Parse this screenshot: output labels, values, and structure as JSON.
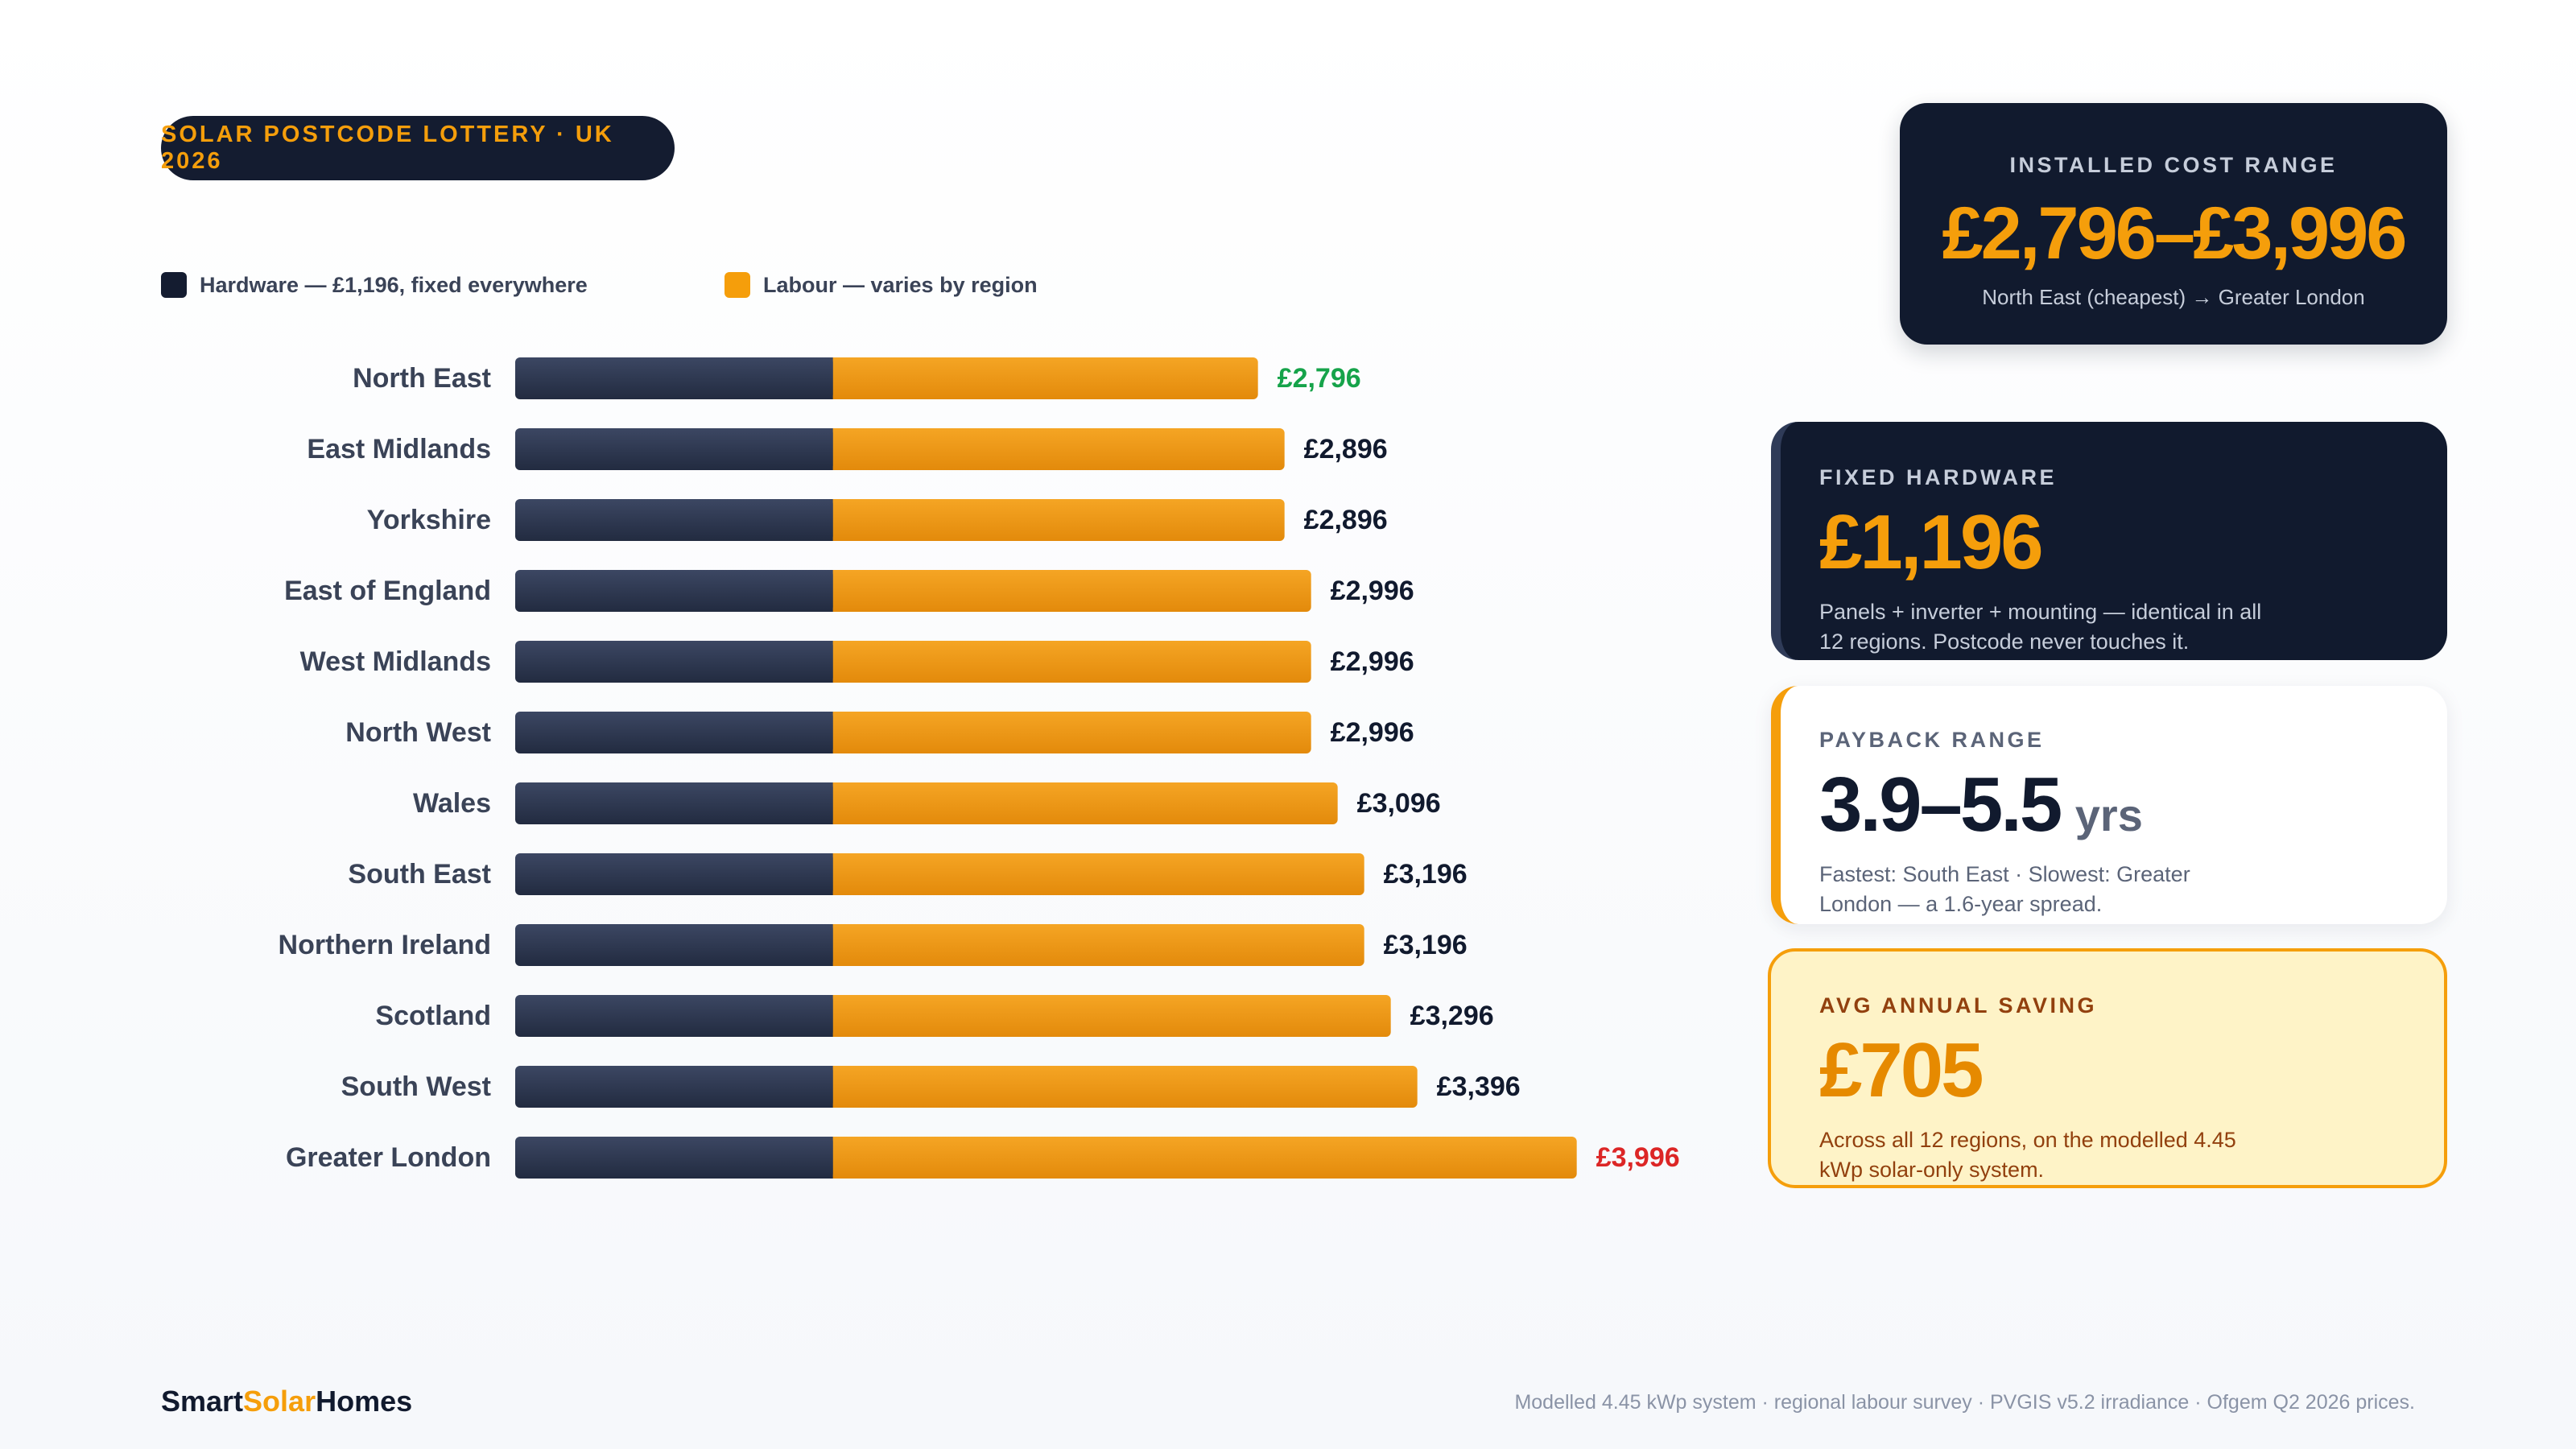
{
  "badge": "SOLAR POSTCODE LOTTERY · UK 2026",
  "legend": {
    "hardware": "Hardware — £1,196, fixed everywhere",
    "labour": "Labour — varies by region"
  },
  "colors": {
    "hardware": "#2c3650",
    "labour": "#f59e0b",
    "cheapest": "#16a34a",
    "priciest": "#dc2626",
    "dark": "#111a2e"
  },
  "chart_data": {
    "type": "bar",
    "orientation": "horizontal",
    "stacked": true,
    "categories": [
      "North East",
      "East Midlands",
      "Yorkshire",
      "East of England",
      "West Midlands",
      "North West",
      "Wales",
      "South East",
      "Northern Ireland",
      "Scotland",
      "South West",
      "Greater London"
    ],
    "series": [
      {
        "name": "Hardware — £1,196, fixed everywhere",
        "values": [
          1196,
          1196,
          1196,
          1196,
          1196,
          1196,
          1196,
          1196,
          1196,
          1196,
          1196,
          1196
        ]
      },
      {
        "name": "Labour — varies by region",
        "values": [
          1600,
          1700,
          1700,
          1800,
          1800,
          1800,
          1900,
          2000,
          2000,
          2100,
          2200,
          2800
        ]
      }
    ],
    "totals": [
      2796,
      2896,
      2896,
      2996,
      2996,
      2996,
      3096,
      3196,
      3196,
      3296,
      3396,
      3996
    ],
    "data_labels": [
      "£2,796",
      "£2,896",
      "£2,896",
      "£2,996",
      "£2,996",
      "£2,996",
      "£3,096",
      "£3,196",
      "£3,196",
      "£3,296",
      "£3,396",
      "£3,996"
    ],
    "xlim": [
      0,
      4200
    ],
    "legend_position": "top-left"
  },
  "cards": {
    "cost_range": {
      "label": "INSTALLED COST RANGE",
      "value": "£2,796–£3,996",
      "sub": "North East (cheapest) → Greater London"
    },
    "hardware": {
      "label": "FIXED HARDWARE",
      "value": "£1,196",
      "desc": "Panels + inverter + mounting — identical in all 12 regions. Postcode never touches it."
    },
    "payback": {
      "label": "PAYBACK RANGE",
      "value": "3.9–5.5",
      "unit": "yrs",
      "desc": "Fastest: South East · Slowest: Greater London — a 1.6-year spread."
    },
    "saving": {
      "label": "AVG ANNUAL SAVING",
      "value": "£705",
      "desc": "Across all 12 regions, on the modelled 4.45 kWp solar-only system."
    }
  },
  "brand": {
    "part1": "Smart",
    "part2": "Solar",
    "part3": "Homes"
  },
  "footnote": "Modelled 4.45 kWp system · regional labour survey · PVGIS v5.2 irradiance · Ofgem Q2 2026 prices."
}
